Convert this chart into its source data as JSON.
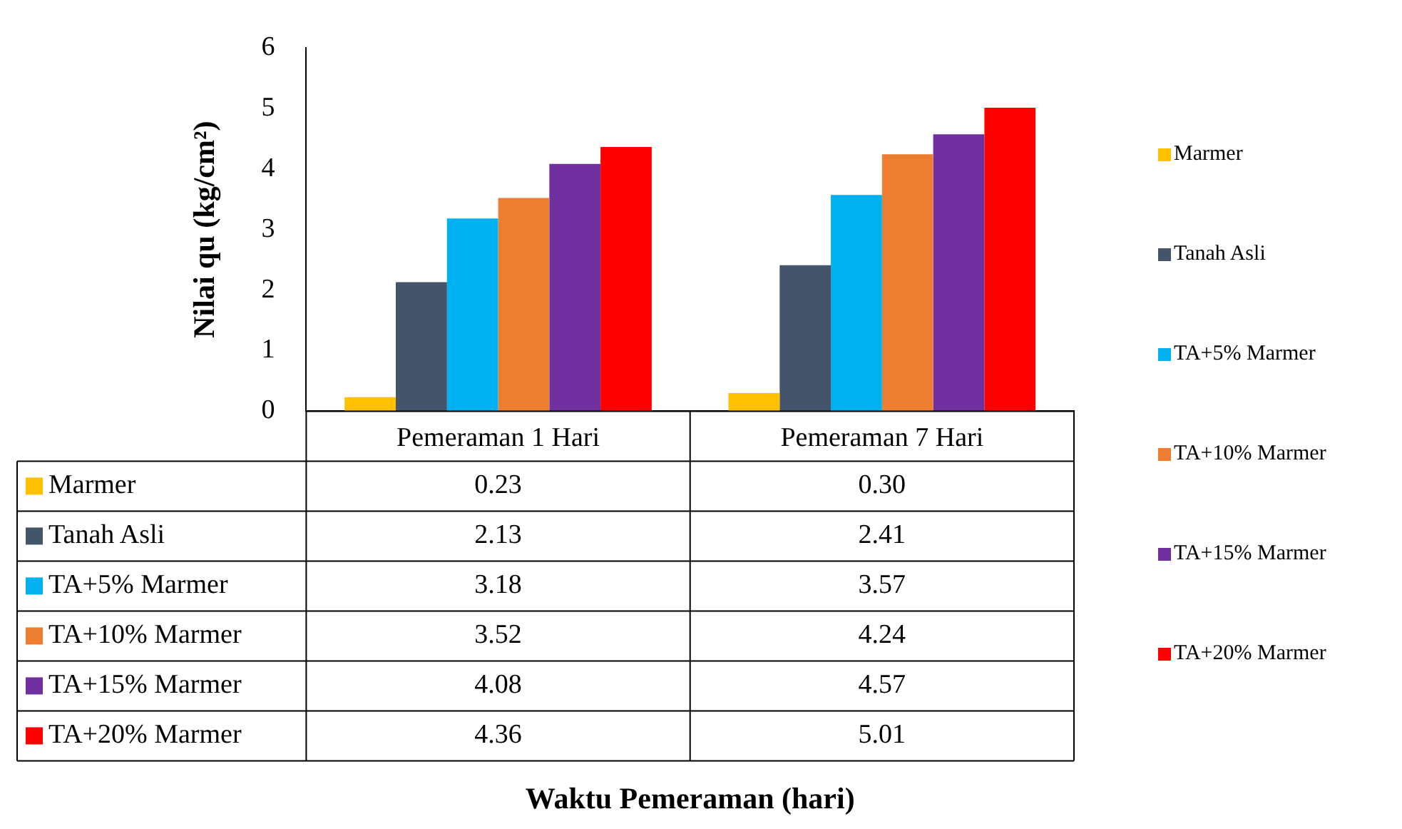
{
  "chart_data": {
    "type": "bar",
    "annotations": [
      "Waktu Pemeraman (hari)"
    ],
    "ylabel": "Nilai qu (kg/cm²)",
    "categories": [
      "Pemeraman 1 Hari",
      "Pemeraman 7 Hari"
    ],
    "series": [
      {
        "name": "Marmer",
        "color": "#ffc000",
        "values": [
          0.23,
          0.3
        ],
        "value_labels": [
          "0.23",
          "0.30"
        ]
      },
      {
        "name": "Tanah Asli",
        "color": "#44546a",
        "values": [
          2.13,
          2.41
        ],
        "value_labels": [
          "2.13",
          "2.41"
        ]
      },
      {
        "name": "TA+5% Marmer",
        "color": "#00b0f0",
        "values": [
          3.18,
          3.57
        ],
        "value_labels": [
          "3.18",
          "3.57"
        ]
      },
      {
        "name": "TA+10% Marmer",
        "color": "#ed7d31",
        "values": [
          3.52,
          4.24
        ],
        "value_labels": [
          "3.52",
          "4.24"
        ]
      },
      {
        "name": "TA+15% Marmer",
        "color": "#7030a0",
        "values": [
          4.08,
          4.57
        ],
        "value_labels": [
          "4.08",
          "4.57"
        ]
      },
      {
        "name": "TA+20% Marmer",
        "color": "#ff0000",
        "values": [
          4.36,
          5.01
        ],
        "value_labels": [
          "4.36",
          "5.01"
        ]
      }
    ],
    "ylim": [
      0,
      6
    ],
    "yticks": [
      0,
      1,
      2,
      3,
      4,
      5,
      6
    ],
    "grid": false,
    "legend": "right"
  }
}
